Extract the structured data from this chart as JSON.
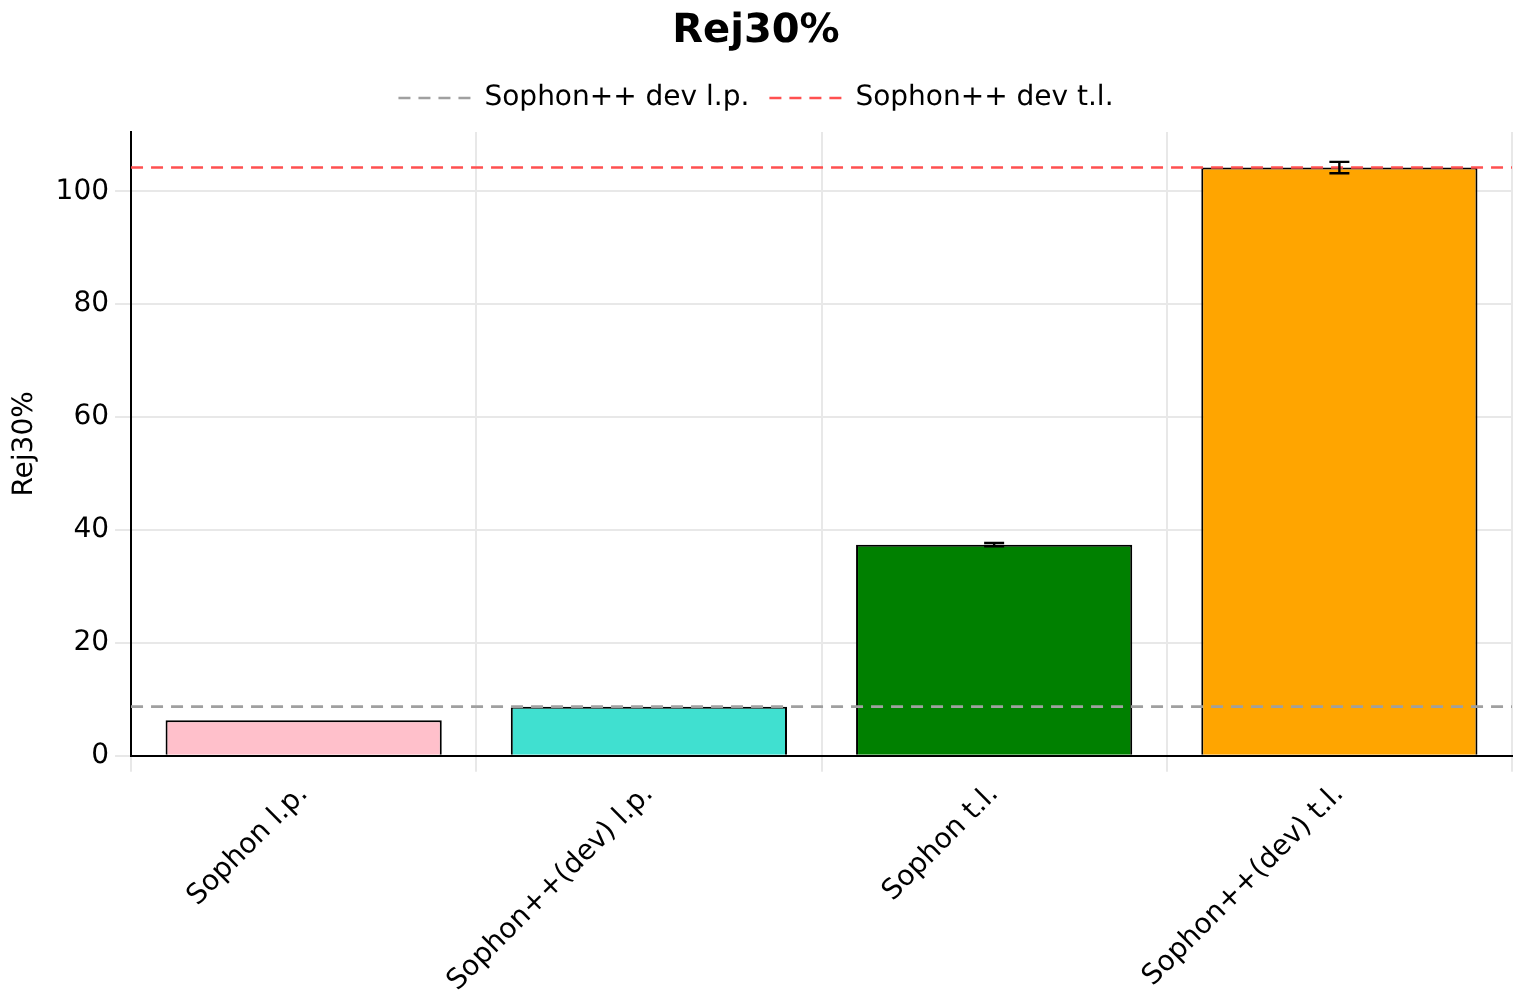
{
  "chart_data": {
    "type": "bar",
    "title": "Rej30%",
    "ylabel": "Rej30%",
    "categories": [
      "Sophon l.p.",
      "Sophon++(dev) l.p.",
      "Sophon t.l.",
      "Sophon++(dev) t.l."
    ],
    "values": [
      6.3,
      8.7,
      37.4,
      104.2
    ],
    "colors": [
      "#ffc0cb",
      "#40e0d0",
      "#008000",
      "#ffa500"
    ],
    "errors": [
      null,
      null,
      0.3,
      1.0
    ],
    "ylim": [
      0,
      110.5
    ],
    "yticks": [
      0,
      20,
      40,
      60,
      80,
      100
    ],
    "grid": true,
    "legend": "top",
    "ref_lines": [
      {
        "axis": "y",
        "value": 8.7,
        "label": "Sophon++ dev l.p.",
        "color": "#a0a0a0",
        "line_style": "dashed"
      },
      {
        "axis": "y",
        "value": 104.2,
        "label": "Sophon++ dev t.l.",
        "color": "#ff5050",
        "line_style": "dashed"
      }
    ]
  }
}
